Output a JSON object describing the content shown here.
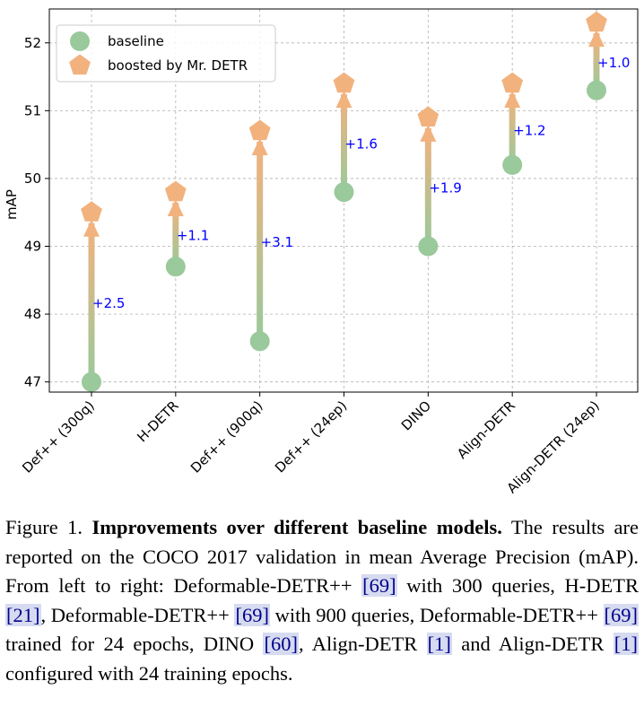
{
  "chart_data": {
    "type": "scatter",
    "ylabel": "mAP",
    "xlabel": "",
    "ylim": [
      46.85,
      52.5
    ],
    "yticks": [
      47,
      48,
      49,
      50,
      51,
      52
    ],
    "ytick_labels": [
      "47",
      "48",
      "49",
      "50",
      "51",
      "52"
    ],
    "grid": true,
    "legend_position": "top-left",
    "categories": [
      "Def++ (300q)",
      "H-DETR",
      "Def++ (900q)",
      "Def++ (24ep)",
      "DINO",
      "Align-DETR",
      "Align-DETR (24ep)"
    ],
    "series": [
      {
        "name": "baseline",
        "marker": "circle",
        "color": "#9ac99b",
        "values": [
          47.0,
          48.7,
          47.6,
          49.8,
          49.0,
          50.2,
          51.3
        ]
      },
      {
        "name": "boosted by Mr. DETR",
        "marker": "pentagon",
        "color": "#f2b27e",
        "values": [
          49.5,
          49.8,
          50.7,
          51.4,
          50.9,
          51.4,
          52.3
        ]
      }
    ],
    "annotations": [
      "+2.5",
      "+1.1",
      "+3.1",
      "+1.6",
      "+1.9",
      "+1.2",
      "+1.0"
    ],
    "annotation_color": "#0000ff"
  },
  "caption": {
    "label": "Figure 1.",
    "title": "Improvements over different baseline models.",
    "text_1": "The results are reported on the COCO 2017 validation in mean Average Precision (mAP). From left to right: Deformable-DETR++",
    "ref_69a": "[69]",
    "text_2": "with 300 queries, H-DETR",
    "ref_21": "[21]",
    "text_3": ", Deformable-DETR++",
    "ref_69b": "[69]",
    "text_4": "with 900 queries, Deformable-DETR++",
    "ref_69c": "[69]",
    "text_5": "trained for 24 epochs, DINO",
    "ref_60": "[60]",
    "text_6": ", Align-DETR",
    "ref_1a": "[1]",
    "text_7": "and Align-DETR",
    "ref_1b": "[1]",
    "text_8": "configured with 24 training epochs."
  }
}
